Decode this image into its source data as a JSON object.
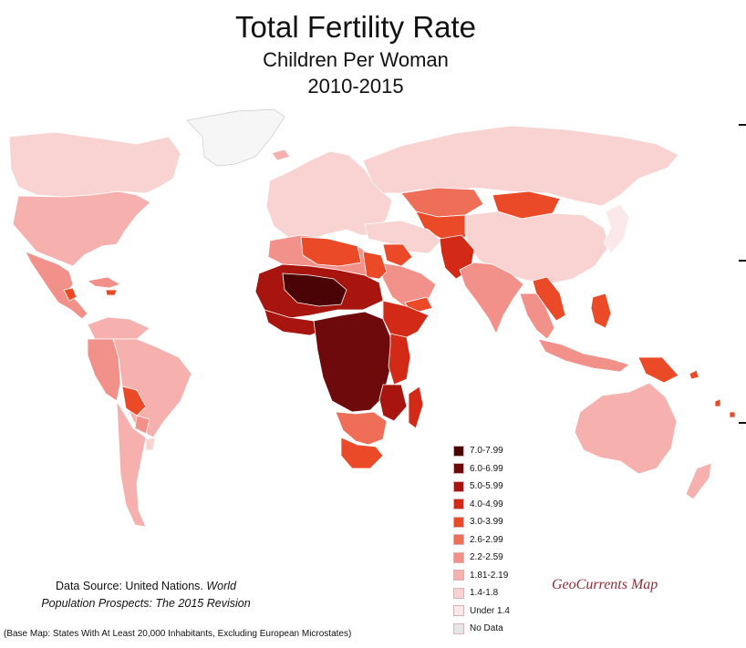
{
  "title": "Total Fertility Rate",
  "subtitle": "Children Per Woman",
  "period": "2010-2015",
  "legend": [
    {
      "label": "7.0-7.99",
      "color": "#4a0406"
    },
    {
      "label": "6.0-6.99",
      "color": "#6e0a0b"
    },
    {
      "label": "5.0-5.99",
      "color": "#a8150f"
    },
    {
      "label": "4.0-4.99",
      "color": "#d32a17"
    },
    {
      "label": "3.0-3.99",
      "color": "#ea4a28"
    },
    {
      "label": "2.6-2.99",
      "color": "#ee6e58"
    },
    {
      "label": "2.2-2.59",
      "color": "#f29189"
    },
    {
      "label": "1.81-2.19",
      "color": "#f6b1ae"
    },
    {
      "label": "1.4-1.8",
      "color": "#f8d3d2"
    },
    {
      "label": "Under 1.4",
      "color": "#fbe9ea"
    },
    {
      "label": "No Data",
      "color": "#e6e6e6"
    }
  ],
  "source": {
    "line1_plain": "Data Source: United Nations. ",
    "line1_italic": "World",
    "line2_italic": "Population Prospects: The 2015 Revision"
  },
  "credit": "GeoCurrents Map",
  "basemap_note": "(Base Map: States With At Least 20,000 Inhabitants, Excluding European Microstates)",
  "regions": {
    "north_america": "#f8d3d2",
    "greenland": "#f6f6f6",
    "usa": "#f6b1ae",
    "mexico_central_america": "#f29189",
    "guatemala": "#ea4a28",
    "caribbean": "#f29189",
    "haiti": "#ea4a28",
    "south_america": "#f6b1ae",
    "brazil": "#f6b1ae",
    "andes": "#f29189",
    "bolivia": "#ea4a28",
    "paraguay": "#f29189",
    "argentina_chile": "#f6b1ae",
    "uruguay": "#f8d3d2",
    "europe": "#f8d3d2",
    "iceland": "#f6b1ae",
    "russia": "#f8d3d2",
    "north_africa": "#f29189",
    "algeria_libya": "#ea4a28",
    "egypt": "#ea4a28",
    "sahel_west": "#a8150f",
    "niger_mali": "#4a0406",
    "west_africa_coast": "#a8150f",
    "central_africa": "#6e0a0b",
    "east_africa": "#a8150f",
    "ethiopia": "#d32a17",
    "kenya_tanzania": "#d32a17",
    "southern_africa": "#ee6e58",
    "south_africa": "#ea4a28",
    "madagascar": "#d32a17",
    "middle_east": "#f29189",
    "iraq_syria": "#ea4a28",
    "yemen": "#ea4a28",
    "iran_turkey": "#f8d3d2",
    "central_asia": "#ea4a28",
    "kazakhstan": "#ee6e58",
    "mongolia": "#ea4a28",
    "china": "#f8d3d2",
    "afghanistan_pakistan": "#d32a17",
    "india": "#f29189",
    "southeast_asia": "#f29189",
    "laos_myanmar": "#ea4a28",
    "indonesia": "#f29189",
    "philippines": "#ea4a28",
    "png": "#ea4a28",
    "japan_korea": "#fbe9ea",
    "australia": "#f6b1ae",
    "new_zealand": "#f6b1ae",
    "pacific_islands": "#ea4a28"
  }
}
